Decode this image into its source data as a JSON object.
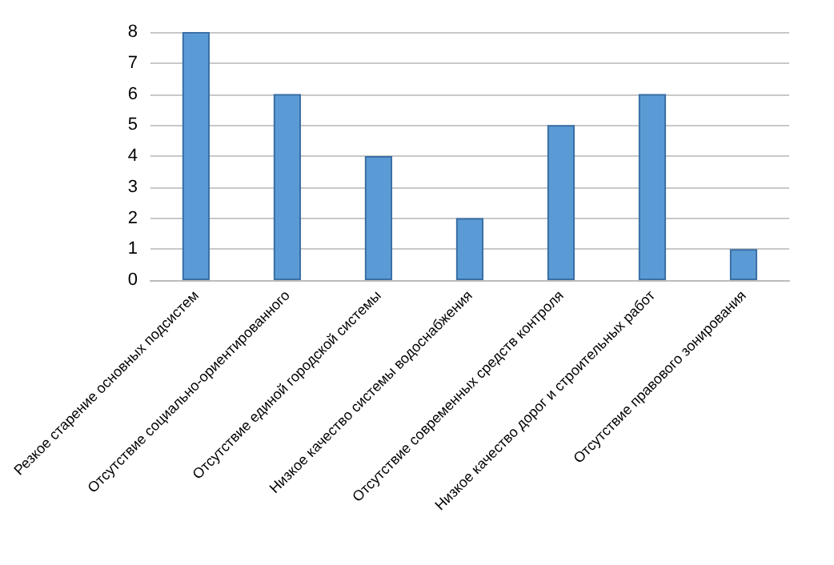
{
  "chart_data": {
    "type": "bar",
    "categories": [
      "Резкое старение основных подсистем",
      "Отсутствие социально-ориентированного",
      "Отсутствие единой городской системы",
      "Низкое качество системы водоснабжения",
      "Отсутствие современных средств контроля",
      "Низкое качество дорог и строительных работ",
      "Отсутствие правового зонирования"
    ],
    "values": [
      8,
      6,
      4,
      2,
      5,
      6,
      1
    ],
    "color": "#5b9bd5",
    "ylim": [
      0,
      8
    ],
    "yticks": [
      0,
      1,
      2,
      3,
      4,
      5,
      6,
      7,
      8
    ],
    "grid": "y"
  }
}
